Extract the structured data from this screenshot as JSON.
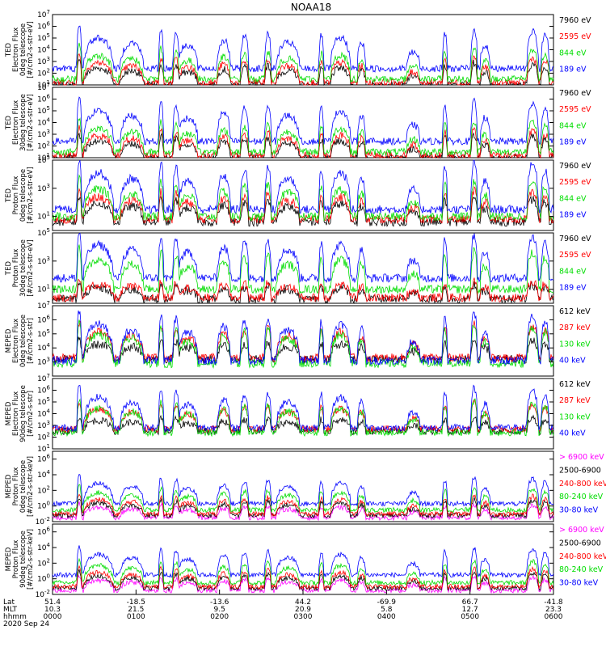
{
  "chart_data": {
    "type": "line",
    "title": "NOAA18",
    "x_range_hours": [
      0,
      6
    ],
    "footer": {
      "row_labels": [
        "Lat",
        "MLT",
        "hhmm"
      ],
      "date": "2020 Sep 24",
      "ticks": [
        {
          "lat": "51.4",
          "mlt": "10.3",
          "hhmm": "0000"
        },
        {
          "lat": "-18.5",
          "mlt": "21.5",
          "hhmm": "0100"
        },
        {
          "lat": "-13.6",
          "mlt": "9.5",
          "hhmm": "0200"
        },
        {
          "lat": "44.2",
          "mlt": "20.9",
          "hhmm": "0300"
        },
        {
          "lat": "-69.9",
          "mlt": "5.8",
          "hhmm": "0400"
        },
        {
          "lat": "66.7",
          "mlt": "12.7",
          "hhmm": "0500"
        },
        {
          "lat": "-41.8",
          "mlt": "23.3",
          "hhmm": "0600"
        }
      ]
    },
    "panels": [
      {
        "ylabel": [
          "TED",
          "Electron Flux",
          "0deg telescope",
          "[#/cm2-s-str-eV]"
        ],
        "ylim_log10": [
          1,
          7
        ],
        "yticks": [
          1,
          2,
          3,
          4,
          5,
          6,
          7
        ],
        "series": [
          {
            "name": "7960 eV",
            "color": "#000000",
            "base": 1.0,
            "scale": 0.55
          },
          {
            "name": "2595 eV",
            "color": "#ff0000",
            "base": 1.2,
            "scale": 0.65
          },
          {
            "name": "844 eV",
            "color": "#00dd00",
            "base": 1.5,
            "scale": 0.78
          },
          {
            "name": "189 eV",
            "color": "#0000ff",
            "base": 2.4,
            "scale": 1.0
          }
        ]
      },
      {
        "ylabel": [
          "TED",
          "Electron Flux",
          "30deg telescope",
          "[#/cm2-s-str-eV]"
        ],
        "ylim_log10": [
          1,
          7
        ],
        "yticks": [
          1,
          2,
          3,
          4,
          5,
          6,
          7
        ],
        "series": [
          {
            "name": "7960 eV",
            "color": "#000000",
            "base": 1.0,
            "scale": 0.55
          },
          {
            "name": "2595 eV",
            "color": "#ff0000",
            "base": 1.2,
            "scale": 0.65
          },
          {
            "name": "844 eV",
            "color": "#00dd00",
            "base": 1.5,
            "scale": 0.78
          },
          {
            "name": "189 eV",
            "color": "#0000ff",
            "base": 2.4,
            "scale": 1.0
          }
        ]
      },
      {
        "ylabel": [
          "TED",
          "Proton Flux",
          "0deg telescope",
          "[#/cm2-s-str-eV]"
        ],
        "ylim_log10": [
          0,
          5
        ],
        "yticks": [
          1,
          3,
          5
        ],
        "series": [
          {
            "name": "7960 eV",
            "color": "#000000",
            "base": 0.6,
            "scale": 0.5
          },
          {
            "name": "2595 eV",
            "color": "#ff0000",
            "base": 0.8,
            "scale": 0.6
          },
          {
            "name": "844 eV",
            "color": "#00dd00",
            "base": 1.0,
            "scale": 0.75
          },
          {
            "name": "189 eV",
            "color": "#0000ff",
            "base": 1.5,
            "scale": 1.0
          }
        ]
      },
      {
        "ylabel": [
          "TED",
          "Proton Flux",
          "30deg telescope",
          "[#/cm2-s-str-eV]"
        ],
        "ylim_log10": [
          0,
          5
        ],
        "yticks": [
          1,
          3,
          5
        ],
        "series": [
          {
            "name": "7960 eV",
            "color": "#000000",
            "base": 0.3,
            "scale": 0.3
          },
          {
            "name": "2595 eV",
            "color": "#ff0000",
            "base": 0.4,
            "scale": 0.35
          },
          {
            "name": "844 eV",
            "color": "#00dd00",
            "base": 1.0,
            "scale": 0.8
          },
          {
            "name": "189 eV",
            "color": "#0000ff",
            "base": 1.8,
            "scale": 0.9
          }
        ]
      },
      {
        "ylabel": [
          "MEPED",
          "Electron Flux",
          "0deg telescope",
          "[#/cm2-s-str]"
        ],
        "ylim_log10": [
          2,
          7
        ],
        "yticks": [
          3,
          4,
          5,
          6,
          7
        ],
        "series": [
          {
            "name": "612 keV",
            "color": "#000000",
            "base": 3.2,
            "scale": 0.4
          },
          {
            "name": "287 keV",
            "color": "#ff0000",
            "base": 3.3,
            "scale": 0.7
          },
          {
            "name": "130 keV",
            "color": "#00dd00",
            "base": 2.9,
            "scale": 0.8
          },
          {
            "name": "40 keV",
            "color": "#0000ff",
            "base": 3.1,
            "scale": 1.0
          }
        ]
      },
      {
        "ylabel": [
          "MEPED",
          "Electron Flux",
          "90deg telescope",
          "[#/cm2-s-str]"
        ],
        "ylim_log10": [
          1,
          7
        ],
        "yticks": [
          1,
          2,
          3,
          4,
          5,
          6,
          7
        ],
        "series": [
          {
            "name": "612 keV",
            "color": "#000000",
            "base": 2.5,
            "scale": 0.35
          },
          {
            "name": "287 keV",
            "color": "#ff0000",
            "base": 2.7,
            "scale": 0.65
          },
          {
            "name": "130 keV",
            "color": "#00dd00",
            "base": 2.4,
            "scale": 0.8
          },
          {
            "name": "40 keV",
            "color": "#0000ff",
            "base": 2.8,
            "scale": 1.0
          }
        ]
      },
      {
        "ylabel": [
          "MEPED",
          "Proton Flux",
          "0deg telescope",
          "[#/cm2-s-str-keV]"
        ],
        "ylim_log10": [
          -2,
          7
        ],
        "yticks": [
          -2,
          0,
          2,
          4,
          6
        ],
        "series": [
          {
            "name": "> 6900 keV",
            "color": "#ff00ff",
            "base": -1.5,
            "scale": 0.5
          },
          {
            "name": "2500-6900",
            "color": "#000000",
            "base": -1.2,
            "scale": 0.6
          },
          {
            "name": "240-800 keV",
            "color": "#ff0000",
            "base": -1.0,
            "scale": 0.7
          },
          {
            "name": "80-240 keV",
            "color": "#00dd00",
            "base": -0.5,
            "scale": 0.85
          },
          {
            "name": "30-80 keV",
            "color": "#0000ff",
            "base": 0.3,
            "scale": 1.0
          }
        ]
      },
      {
        "ylabel": [
          "MEPED",
          "Proton Flux",
          "90deg telescope",
          "[#/cm2-s-str-keV]"
        ],
        "ylim_log10": [
          -2,
          7
        ],
        "yticks": [
          -2,
          0,
          2,
          4,
          6
        ],
        "series": [
          {
            "name": "> 6900 keV",
            "color": "#ff00ff",
            "base": -1.5,
            "scale": 0.5
          },
          {
            "name": "2500-6900",
            "color": "#000000",
            "base": -1.2,
            "scale": 0.6
          },
          {
            "name": "240-800 keV",
            "color": "#ff0000",
            "base": -1.0,
            "scale": 0.7
          },
          {
            "name": "80-240 keV",
            "color": "#00dd00",
            "base": -0.5,
            "scale": 0.85
          },
          {
            "name": "30-80 keV",
            "color": "#0000ff",
            "base": 0.5,
            "scale": 1.0
          }
        ]
      }
    ],
    "events": [
      {
        "t": 0.32,
        "w": 0.03,
        "amp": 3.6
      },
      {
        "t": 0.55,
        "w": 0.18,
        "amp": 2.6
      },
      {
        "t": 0.95,
        "w": 0.14,
        "amp": 2.2
      },
      {
        "t": 1.3,
        "w": 0.03,
        "amp": 3.3
      },
      {
        "t": 1.48,
        "w": 0.04,
        "amp": 3.0
      },
      {
        "t": 1.62,
        "w": 0.12,
        "amp": 2.0
      },
      {
        "t": 2.05,
        "w": 0.08,
        "amp": 2.4
      },
      {
        "t": 2.3,
        "w": 0.05,
        "amp": 2.8
      },
      {
        "t": 2.58,
        "w": 0.04,
        "amp": 3.0
      },
      {
        "t": 2.82,
        "w": 0.14,
        "amp": 2.2
      },
      {
        "t": 3.22,
        "w": 0.03,
        "amp": 2.8
      },
      {
        "t": 3.45,
        "w": 0.12,
        "amp": 2.6
      },
      {
        "t": 3.7,
        "w": 0.05,
        "amp": 2.2
      },
      {
        "t": 4.32,
        "w": 0.08,
        "amp": 1.4
      },
      {
        "t": 4.7,
        "w": 0.03,
        "amp": 3.0
      },
      {
        "t": 5.05,
        "w": 0.04,
        "amp": 3.4
      },
      {
        "t": 5.18,
        "w": 0.06,
        "amp": 2.0
      },
      {
        "t": 5.75,
        "w": 0.07,
        "amp": 3.2
      },
      {
        "t": 5.9,
        "w": 0.05,
        "amp": 2.8
      }
    ]
  }
}
